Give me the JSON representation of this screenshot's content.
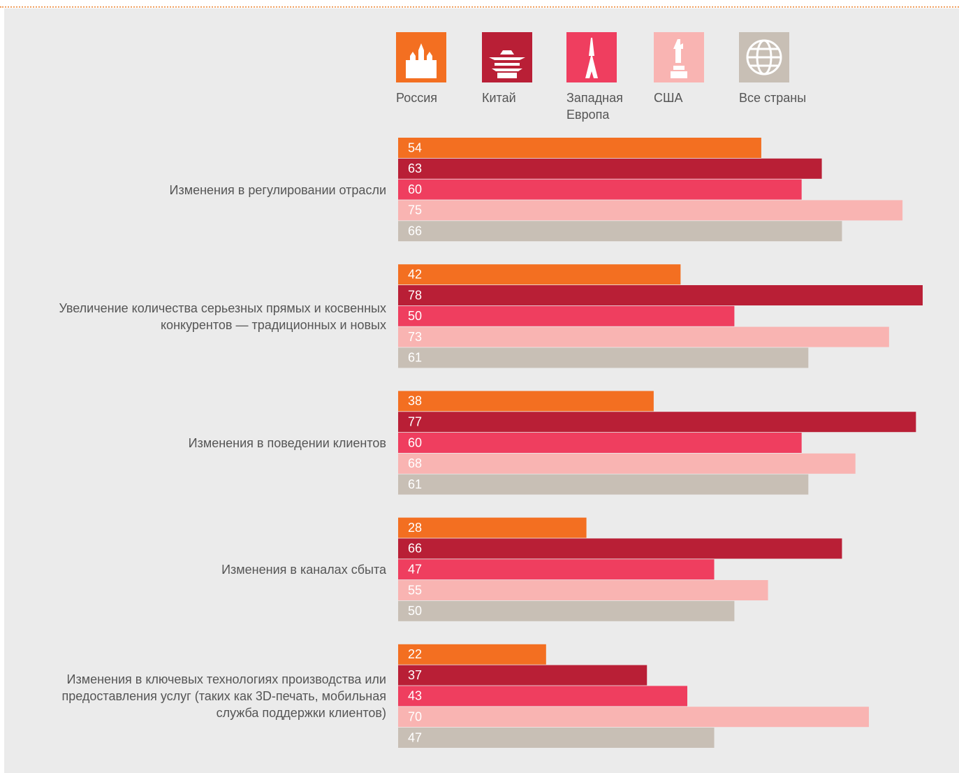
{
  "chart_data": {
    "type": "bar",
    "orientation": "horizontal",
    "categories": [
      "Изменения в регулировании отрасли",
      "Увеличение количества серьезных прямых и косвенных конкурентов — традиционных и новых",
      "Изменения в поведении клиентов",
      "Изменения в каналах сбыта",
      "Изменения в ключевых технологиях производства или предоставления услуг (таких как 3D-печать, мобильная служба поддержки клиентов)"
    ],
    "series": [
      {
        "name": "Россия",
        "color": "#f36f21",
        "values": [
          54,
          42,
          38,
          28,
          22
        ]
      },
      {
        "name": "Китай",
        "color": "#b91f36",
        "values": [
          63,
          78,
          77,
          66,
          37
        ]
      },
      {
        "name": "Западная Европа",
        "color": "#ef3e5f",
        "values": [
          60,
          50,
          60,
          47,
          43
        ]
      },
      {
        "name": "США",
        "color": "#f9b4b2",
        "values": [
          75,
          73,
          68,
          55,
          70
        ]
      },
      {
        "name": "Все страны",
        "color": "#c8bfb5",
        "values": [
          66,
          61,
          61,
          50,
          47
        ]
      }
    ]
  }
}
